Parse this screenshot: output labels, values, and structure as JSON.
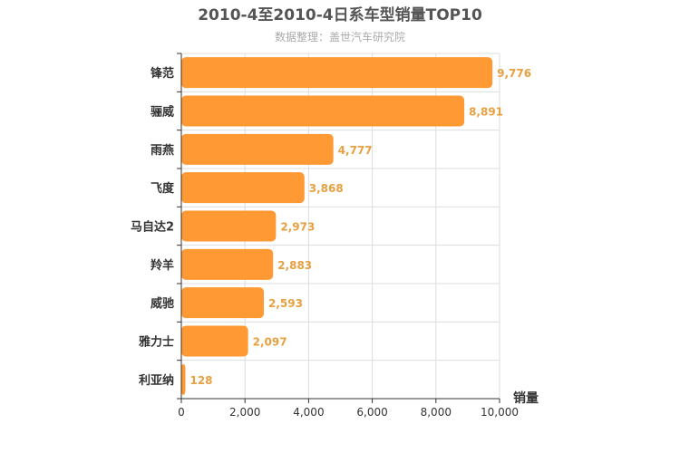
{
  "chart_data": {
    "type": "bar",
    "orientation": "horizontal",
    "title": "2010-4至2010-4日系车型销量TOP10",
    "subtitle": "数据整理：盖世汽车研究院",
    "xlabel": "销量",
    "ylabel": "",
    "categories": [
      "锋范",
      "骊威",
      "雨燕",
      "飞度",
      "马自达2",
      "羚羊",
      "威驰",
      "雅力士",
      "利亚纳"
    ],
    "values": [
      9776,
      8891,
      4777,
      3868,
      2973,
      2883,
      2593,
      2097,
      128
    ],
    "value_labels": [
      "9,776",
      "8,891",
      "4,777",
      "3,868",
      "2,973",
      "2,883",
      "2,593",
      "2,097",
      "128"
    ],
    "xlim": [
      0,
      10000
    ],
    "ticks": [
      0,
      2000,
      4000,
      6000,
      8000,
      10000
    ],
    "tick_labels": [
      "0",
      "2,000",
      "4,000",
      "6,000",
      "8,000",
      "10,000"
    ],
    "grid": true,
    "bar_color": "#ff9933",
    "value_label_color": "#e8a040"
  }
}
